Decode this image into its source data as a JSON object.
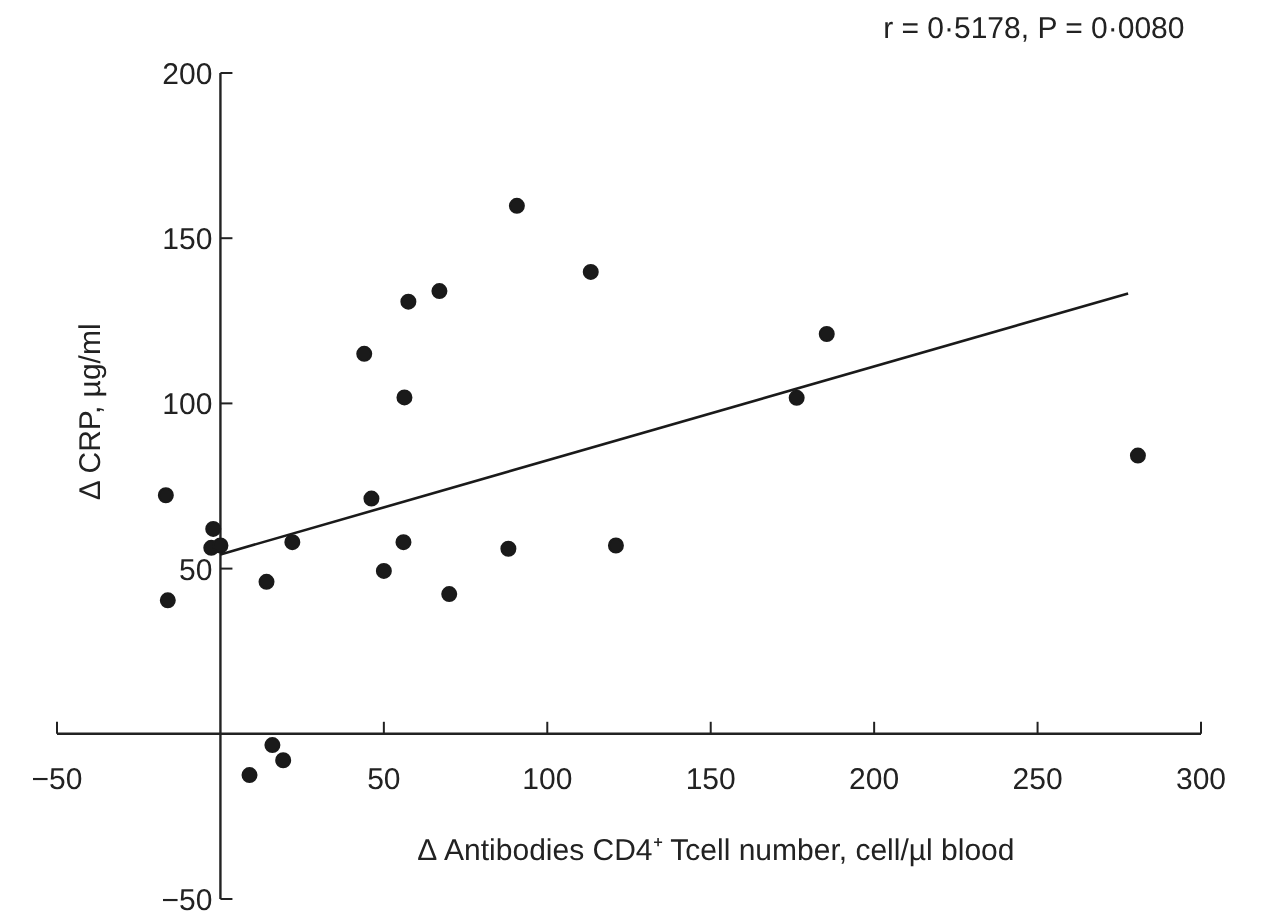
{
  "chart_data": {
    "type": "scatter",
    "xlabel": "Δ Antibodies CD4⁺ Tcell number, cell/µl blood",
    "ylabel": "Δ CRP, µg/ml",
    "annotations": [
      "r = 0·5178, P = 0·0080"
    ],
    "series": [
      {
        "color": "#1a1a1a",
        "marker": "circle",
        "x": [
          -16.7,
          -16.1,
          -2.2,
          -2.8,
          0,
          14.1,
          22,
          8.9,
          15.9,
          19.2,
          44,
          46.2,
          50,
          56.3,
          56,
          57.5,
          67,
          70,
          90.7,
          88.1,
          113.3,
          121,
          185.5,
          176.3,
          280.7
        ],
        "values": [
          72.2,
          40.4,
          62,
          56.3,
          57,
          46,
          58,
          -12.5,
          -3.4,
          -8,
          115,
          71.2,
          49.3,
          101.8,
          58,
          130.8,
          134,
          42.3,
          159.8,
          56,
          139.8,
          57,
          121,
          101.7,
          84.2
        ]
      },
      {
        "type": "line",
        "color": "#1a1a1a",
        "line_style": "solid",
        "x": [
          0,
          277.7
        ],
        "values": [
          54.3,
          133.3
        ]
      }
    ],
    "xlim": [
      -50,
      300
    ],
    "ylim": [
      -50,
      200
    ],
    "xticks": [
      -50,
      50,
      100,
      150,
      200,
      250,
      300
    ],
    "yticks": [
      -50,
      50,
      100,
      150,
      200
    ],
    "grid": false
  }
}
